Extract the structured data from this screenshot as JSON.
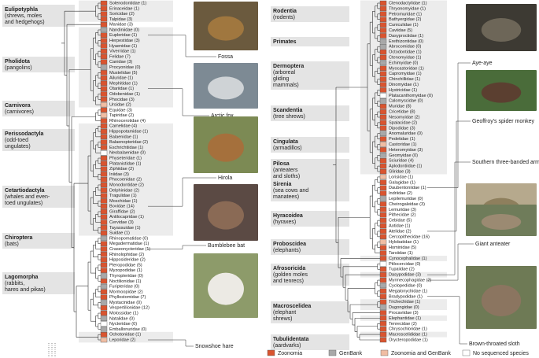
{
  "legend": [
    {
      "label": "Zoonomia",
      "color": "#d9542f"
    },
    {
      "label": "GenBank",
      "color": "#a8a8a8"
    },
    {
      "label": "Zoonomia and GenBank",
      "color": "#f0bda3"
    },
    {
      "label": "No sequenced species",
      "color": "#ffffff"
    }
  ],
  "left": {
    "orders": [
      {
        "lines": [
          "Eulipotyphla",
          "(shrews, moles",
          "and hedgehogs)"
        ]
      },
      {
        "lines": [
          "Pholidota",
          "(pangolins)"
        ]
      },
      {
        "lines": [
          "Carnivora",
          "(carnivores)"
        ]
      },
      {
        "lines": [
          "Perissodactyla",
          "(odd-toed",
          "ungulates)"
        ]
      },
      {
        "lines": [
          "Cetartiodactyla",
          "(whales and even-",
          "toed ungulates)"
        ]
      },
      {
        "lines": [
          "Chiroptera",
          "(bats)"
        ]
      },
      {
        "lines": [
          "Lagomorpha",
          "(rabbits,",
          "hares and pikas)"
        ]
      }
    ],
    "families": [
      {
        "name": "Solenodontidae (1)",
        "s": 0
      },
      {
        "name": "Erinaceidae (1)",
        "s": 0
      },
      {
        "name": "Soricidae (2)",
        "s": 0
      },
      {
        "name": "Talpidae (3)",
        "s": 0
      },
      {
        "name": "Manidae (3)",
        "s": 0
      },
      {
        "name": "Nandiniidae (0)",
        "s": 1
      },
      {
        "name": "Eupleridae (1)",
        "s": 0
      },
      {
        "name": "Herpestidae (3)",
        "s": 0
      },
      {
        "name": "Hyaenidae (1)",
        "s": 0
      },
      {
        "name": "Viverridae (1)",
        "s": 0
      },
      {
        "name": "Felidae (7)",
        "s": 0
      },
      {
        "name": "Canidae (3)",
        "s": 0
      },
      {
        "name": "Procyonidae (0)",
        "s": 1
      },
      {
        "name": "Mustelidae (5)",
        "s": 0
      },
      {
        "name": "Ailuridae (1)",
        "s": 0
      },
      {
        "name": "Mephitidae (1)",
        "s": 0
      },
      {
        "name": "Otariidae (1)",
        "s": 0
      },
      {
        "name": "Odobenidae (1)",
        "s": 0
      },
      {
        "name": "Phocidae (3)",
        "s": 0
      },
      {
        "name": "Ursidae (2)",
        "s": 2
      },
      {
        "name": "Equidae (3)",
        "s": 0
      },
      {
        "name": "Tapiridae (2)",
        "s": 2
      },
      {
        "name": "Rhinocerotidae (4)",
        "s": 0
      },
      {
        "name": "Camelidae (4)",
        "s": 0
      },
      {
        "name": "Hippopotamidae (1)",
        "s": 0
      },
      {
        "name": "Balaenidae (1)",
        "s": 0
      },
      {
        "name": "Balaenopteridae (2)",
        "s": 0
      },
      {
        "name": "Eschrichtiidae (1)",
        "s": 0
      },
      {
        "name": "Neobalaenidae (0)",
        "s": 3
      },
      {
        "name": "Physeteridae (1)",
        "s": 0
      },
      {
        "name": "Platanistidae (1)",
        "s": 0
      },
      {
        "name": "Ziphiidae (2)",
        "s": 0
      },
      {
        "name": "Iniidae (3)",
        "s": 0
      },
      {
        "name": "Phocoenidae (2)",
        "s": 0
      },
      {
        "name": "Monodontidae (2)",
        "s": 0
      },
      {
        "name": "Delphinidae (2)",
        "s": 0
      },
      {
        "name": "Tragulidae (1)",
        "s": 0
      },
      {
        "name": "Moschidae (1)",
        "s": 0
      },
      {
        "name": "Bovidae (14)",
        "s": 0
      },
      {
        "name": "Giraffidae (2)",
        "s": 0
      },
      {
        "name": "Antilocapridae (1)",
        "s": 0
      },
      {
        "name": "Cervidae (3)",
        "s": 0
      },
      {
        "name": "Tayassuidae (1)",
        "s": 0
      },
      {
        "name": "Suidae (1)",
        "s": 0
      },
      {
        "name": "Rhinopomatidae (0)",
        "s": 1
      },
      {
        "name": "Megadermatidae (1)",
        "s": 0
      },
      {
        "name": "Craseonycteridae (1)",
        "s": 0
      },
      {
        "name": "Rhinolophidae (2)",
        "s": 0
      },
      {
        "name": "Hipposideridae (2)",
        "s": 0
      },
      {
        "name": "Pteropodidae (5)",
        "s": 0
      },
      {
        "name": "Myzopodidae (1)",
        "s": 0
      },
      {
        "name": "Thyropteridae (0)",
        "s": 1
      },
      {
        "name": "Noctilionidae (1)",
        "s": 0
      },
      {
        "name": "Furipteridae (0)",
        "s": 1
      },
      {
        "name": "Mormoopidae (2)",
        "s": 0
      },
      {
        "name": "Phyllostomidae (7)",
        "s": 0
      },
      {
        "name": "Mystacinidae (0)",
        "s": 1
      },
      {
        "name": "Vespertilionidae (12)",
        "s": 0
      },
      {
        "name": "Molossidae (1)",
        "s": 0
      },
      {
        "name": "Natalidae (0)",
        "s": 1
      },
      {
        "name": "Nycteridae (0)",
        "s": 3
      },
      {
        "name": "Emballonuridae (0)",
        "s": 1
      },
      {
        "name": "Ochotonidae (1)",
        "s": 0
      },
      {
        "name": "Leporidae (2)",
        "s": 2
      }
    ],
    "photos": [
      "Fossa",
      "Arctic fox",
      "Hirola",
      "Bumblebee bat",
      "Snowshoe hare"
    ]
  },
  "right": {
    "orders": [
      {
        "lines": [
          "Rodentia",
          "(rodents)"
        ]
      },
      {
        "lines": [
          "Primates"
        ]
      },
      {
        "lines": [
          "Dermoptera",
          "(arboreal",
          "gliding",
          "mammals)"
        ]
      },
      {
        "lines": [
          "Scandentia",
          "(tree shrews)"
        ]
      },
      {
        "lines": [
          "Cingulata",
          "(armadillos)"
        ]
      },
      {
        "lines": [
          "Pilosa",
          "(anteaters",
          "and sloths)"
        ]
      },
      {
        "lines": [
          "Sirenia",
          "(sea cows and",
          "manatees)"
        ]
      },
      {
        "lines": [
          "Hyracoidea",
          "(hyraxes)"
        ]
      },
      {
        "lines": [
          "Proboscidea",
          "(elephants)"
        ]
      },
      {
        "lines": [
          "Afrosoricida",
          "(golden moles",
          "and tenrecs)"
        ]
      },
      {
        "lines": [
          "Macroscelidea",
          "(elephant",
          "shrews)"
        ]
      },
      {
        "lines": [
          "Tubulidentata",
          "(aardvarks)"
        ]
      }
    ],
    "families": [
      {
        "name": "Ctenodactylidae (1)",
        "s": 0
      },
      {
        "name": "Thryonomyidae (1)",
        "s": 0
      },
      {
        "name": "Petromuridae (1)",
        "s": 0
      },
      {
        "name": "Bathyergidae (2)",
        "s": 0
      },
      {
        "name": "Cuniculidae (1)",
        "s": 0
      },
      {
        "name": "Caviidae (5)",
        "s": 0
      },
      {
        "name": "Dasyproctidae (1)",
        "s": 0
      },
      {
        "name": "Erethizontidae (0)",
        "s": 1
      },
      {
        "name": "Abrocomidae (0)",
        "s": 1
      },
      {
        "name": "Octodontidae (1)",
        "s": 0
      },
      {
        "name": "Ctenomyidae (1)",
        "s": 0
      },
      {
        "name": "Echimyidae (0)",
        "s": 1
      },
      {
        "name": "Myocastoridae (1)",
        "s": 0
      },
      {
        "name": "Capromyidae (1)",
        "s": 0
      },
      {
        "name": "Chinchillidae (1)",
        "s": 0
      },
      {
        "name": "Dinomyidae (1)",
        "s": 0
      },
      {
        "name": "Hystricidae (1)",
        "s": 0
      },
      {
        "name": "Platacanthomyidae (0)",
        "s": 3
      },
      {
        "name": "Calomyscidae (0)",
        "s": 1
      },
      {
        "name": "Muridae (8)",
        "s": 0
      },
      {
        "name": "Cricetidae (8)",
        "s": 0
      },
      {
        "name": "Nesomyidae (2)",
        "s": 0
      },
      {
        "name": "Spalacidae (2)",
        "s": 0
      },
      {
        "name": "Dipodidae (3)",
        "s": 0
      },
      {
        "name": "Anomaluridae (0)",
        "s": 1
      },
      {
        "name": "Pedetidae (1)",
        "s": 0
      },
      {
        "name": "Castoridae (1)",
        "s": 2
      },
      {
        "name": "Heteromyidae (3)",
        "s": 0
      },
      {
        "name": "Geomyidae (0)",
        "s": 1
      },
      {
        "name": "Sciuridae (4)",
        "s": 0
      },
      {
        "name": "Aplodontiidae (1)",
        "s": 0
      },
      {
        "name": "Gliridae (3)",
        "s": 0
      },
      {
        "name": "Lorisidae (1)",
        "s": 2
      },
      {
        "name": "Galagidae (1)",
        "s": 0
      },
      {
        "name": "Daubentoniidae (1)",
        "s": 0
      },
      {
        "name": "Indriidae (2)",
        "s": 0
      },
      {
        "name": "Lepilemuridae (0)",
        "s": 1
      },
      {
        "name": "Cheirogaleidae (3)",
        "s": 0
      },
      {
        "name": "Lemuridae (3)",
        "s": 0
      },
      {
        "name": "Pithecidae (2)",
        "s": 0
      },
      {
        "name": "Cebidae (5)",
        "s": 0
      },
      {
        "name": "Aotidae (1)",
        "s": 0
      },
      {
        "name": "Atelidae (2)",
        "s": 0
      },
      {
        "name": "Cercopithecidae (16)",
        "s": 0
      },
      {
        "name": "Hylobatidae (1)",
        "s": 2
      },
      {
        "name": "Hominidae (5)",
        "s": 0
      },
      {
        "name": "Tarsiidae (1)",
        "s": 0
      },
      {
        "name": "Cynocephalidae (1)",
        "s": 0
      },
      {
        "name": "Ptilocercidae (0)",
        "s": 3
      },
      {
        "name": "Tupaiidae (2)",
        "s": 0
      },
      {
        "name": "Dasypodidae (3)",
        "s": 0
      },
      {
        "name": "Myrmecophagidae (2)",
        "s": 0
      },
      {
        "name": "Cyclopedidae (0)",
        "s": 1
      },
      {
        "name": "Megalonychidae (1)",
        "s": 0
      },
      {
        "name": "Bradypodidae (1)",
        "s": 0
      },
      {
        "name": "Trichechidae (1)",
        "s": 0
      },
      {
        "name": "Dugongidae (0)",
        "s": 1
      },
      {
        "name": "Procaviidae (3)",
        "s": 0
      },
      {
        "name": "Elephantidae (1)",
        "s": 0
      },
      {
        "name": "Tenrecidae (2)",
        "s": 0
      },
      {
        "name": "Chrysochloridae (1)",
        "s": 0
      },
      {
        "name": "Macroscelididae (1)",
        "s": 0
      },
      {
        "name": "Orycteropodidae (1)",
        "s": 0
      }
    ],
    "photos": [
      "Aye-aye",
      "Geoffroy's spider monkey",
      "Southern three-banded armadillo",
      "Giant anteater",
      "Brown-throated sloth"
    ]
  }
}
